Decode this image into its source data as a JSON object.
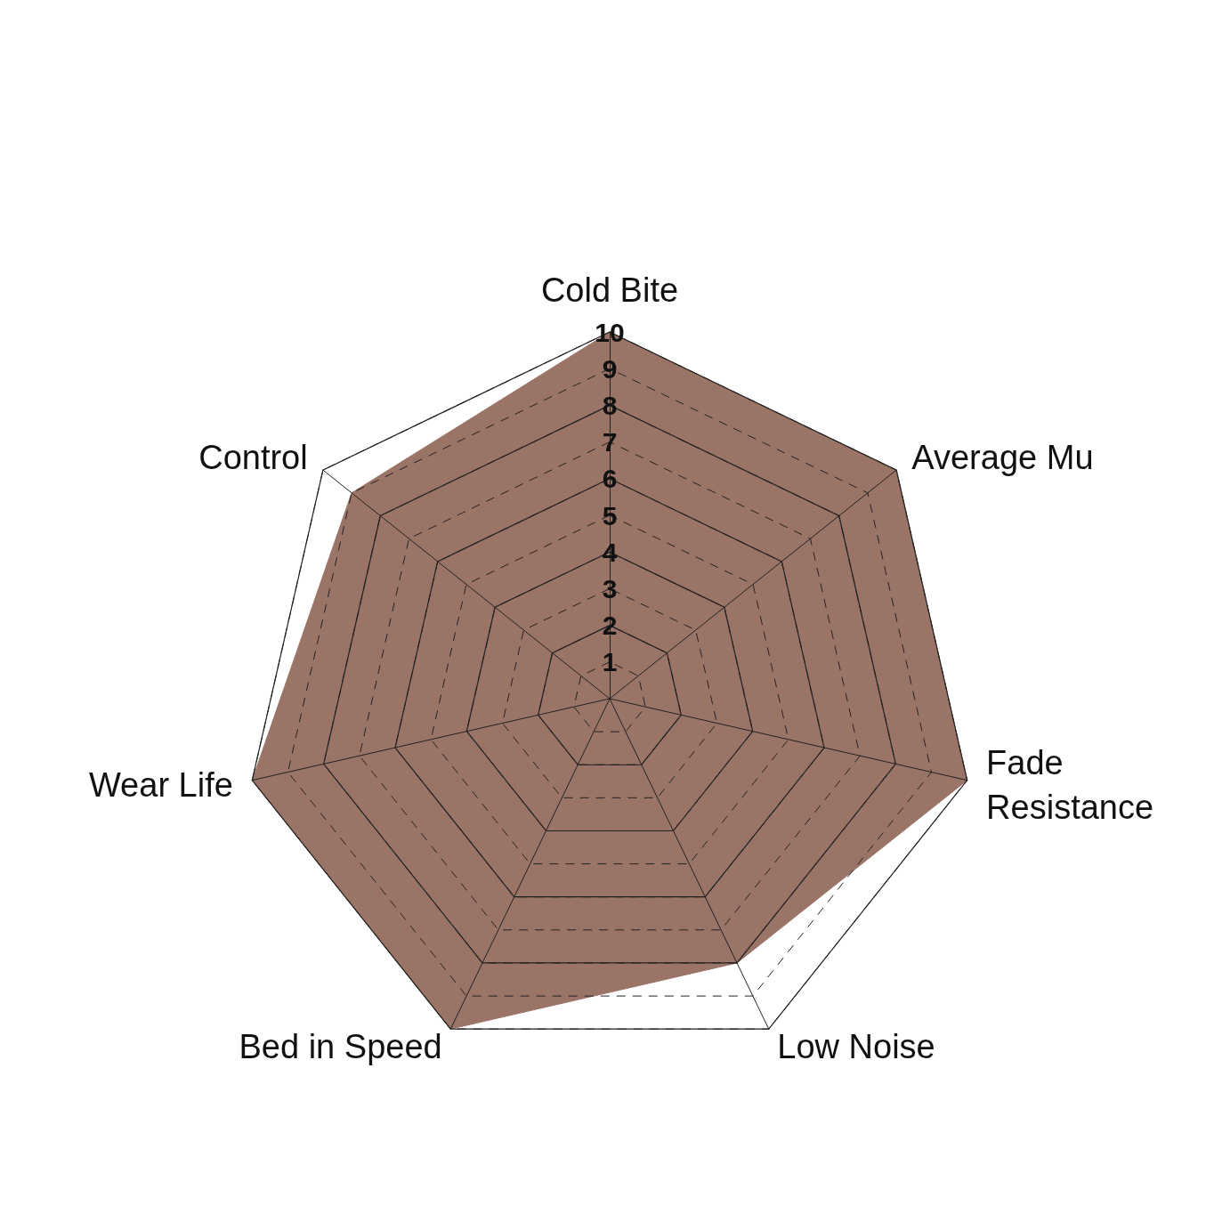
{
  "chart_data": {
    "type": "radar",
    "categories": [
      "Cold Bite",
      "Average Mu",
      "Fade\nResistance",
      "Low Noise",
      "Bed in Speed",
      "Wear Life",
      "Control"
    ],
    "series": [
      {
        "color": "#9b7468",
        "values": [
          10,
          10,
          10,
          8,
          10,
          10,
          9
        ]
      }
    ],
    "ylim": [
      0,
      10
    ],
    "yticks": [
      1,
      2,
      3,
      4,
      5,
      6,
      7,
      8,
      9,
      10
    ],
    "grid": true,
    "marker": "none"
  }
}
